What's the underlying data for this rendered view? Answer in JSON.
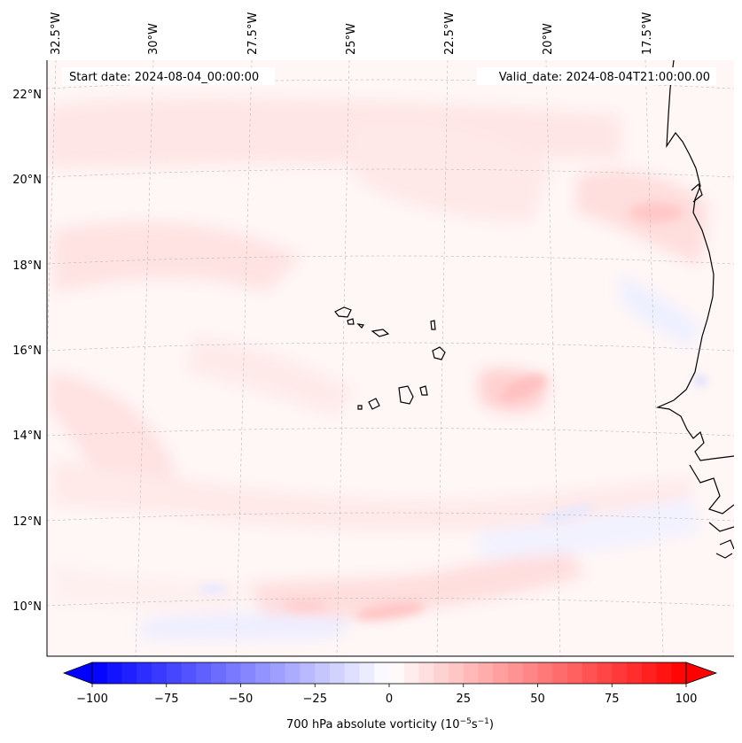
{
  "header": {
    "start_date": "Start date: 2024-08-04_00:00:00",
    "valid_date": "Valid_date: 2024-08-04T21:00:00.00"
  },
  "longitude_labels": [
    "32.5°W",
    "30°W",
    "27.5°W",
    "25°W",
    "22.5°W",
    "20°W",
    "17.5°W"
  ],
  "latitude_labels": [
    "22°N",
    "20°N",
    "18°N",
    "16°N",
    "14°N",
    "12°N",
    "10°N"
  ],
  "colorbar": {
    "ticks": [
      "−100",
      "−75",
      "−50",
      "−25",
      "0",
      "25",
      "50",
      "75",
      "100"
    ],
    "label": "700 hPa absolute vorticity (10",
    "label_exp1": "−5",
    "label_mid": "s",
    "label_exp2": "−1",
    "label_end": ")",
    "min": -100,
    "max": 100,
    "colors": {
      "negative": "#0000ff",
      "zero": "#ffffff",
      "positive": "#ff0000"
    }
  }
}
